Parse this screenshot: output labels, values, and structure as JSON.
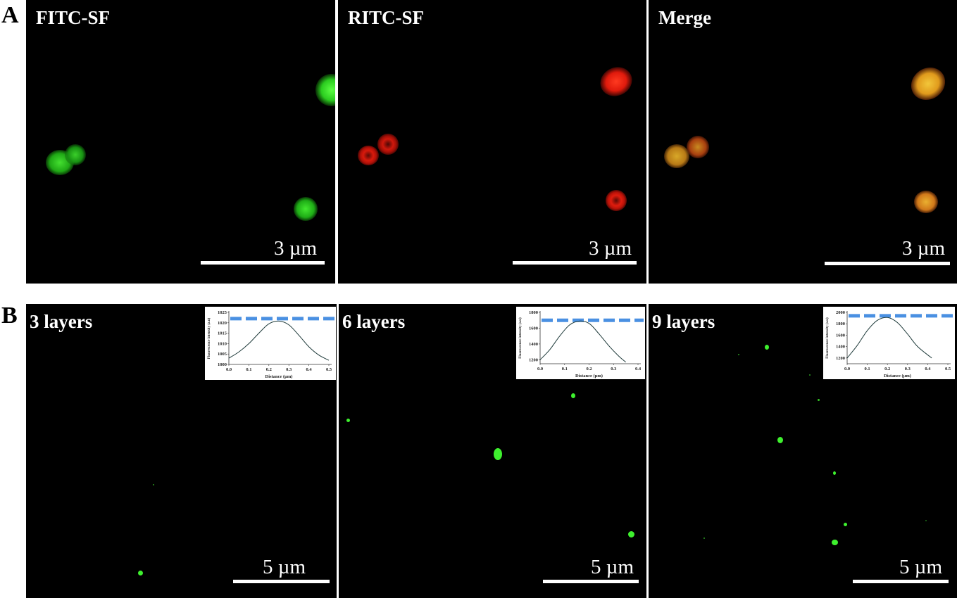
{
  "row_a": {
    "label": "A",
    "panels": [
      {
        "title": "FITC-SF",
        "scale": "3 µm"
      },
      {
        "title": "RITC-SF",
        "scale": "3 µm"
      },
      {
        "title": "Merge",
        "scale": "3 µm"
      }
    ]
  },
  "row_b": {
    "label": "B",
    "panels": [
      {
        "title": "3 layers",
        "scale": "5 µm"
      },
      {
        "title": "6 layers",
        "scale": "5 µm"
      },
      {
        "title": "9 layers",
        "scale": "5 µm"
      }
    ]
  },
  "colors": {
    "fitc_green": "#39e52c",
    "ritc_red": "#ff2a1a",
    "merge_yellow": "#e8b020",
    "dash_blue": "#4a90e2"
  },
  "chart_data": [
    {
      "type": "line",
      "xlabel": "Distance (µm)",
      "ylabel": "Fluorescence intensity (a.u)",
      "xticks": [
        "0.0",
        "0.1",
        "0.2",
        "0.3",
        "0.4",
        "0.5"
      ],
      "yticks": [
        "1000",
        "1005",
        "1010",
        "1015",
        "1020",
        "1025"
      ],
      "xlim": [
        0,
        0.5
      ],
      "ylim": [
        1000,
        1025
      ],
      "dashed_level": 1022,
      "x": [
        0.0,
        0.05,
        0.1,
        0.15,
        0.2,
        0.25,
        0.3,
        0.35,
        0.4,
        0.45,
        0.5
      ],
      "y": [
        1003,
        1006,
        1010,
        1015,
        1019.5,
        1020.8,
        1019,
        1014,
        1008.5,
        1004.5,
        1002
      ]
    },
    {
      "type": "line",
      "xlabel": "Distance (µm)",
      "ylabel": "Fluorescence intensity (a.u)",
      "xticks": [
        "0.0",
        "0.1",
        "0.2",
        "0.3",
        "0.4"
      ],
      "yticks": [
        "1200",
        "1400",
        "1600",
        "1800"
      ],
      "xlim": [
        0,
        0.4
      ],
      "ylim": [
        1150,
        1800
      ],
      "dashed_level": 1700,
      "x": [
        0.0,
        0.04,
        0.08,
        0.12,
        0.16,
        0.2,
        0.24,
        0.28,
        0.32,
        0.35
      ],
      "y": [
        1200,
        1330,
        1500,
        1640,
        1690,
        1660,
        1530,
        1380,
        1250,
        1170
      ]
    },
    {
      "type": "line",
      "xlabel": "Distance (µm)",
      "ylabel": "Fluorescence intensity (a.u)",
      "xticks": [
        "0.0",
        "0.1",
        "0.2",
        "0.3",
        "0.4",
        "0.5"
      ],
      "yticks": [
        "1200",
        "1400",
        "1600",
        "1800",
        "2000"
      ],
      "xlim": [
        0,
        0.5
      ],
      "ylim": [
        1100,
        2000
      ],
      "dashed_level": 1940,
      "x": [
        0.0,
        0.05,
        0.1,
        0.15,
        0.2,
        0.25,
        0.3,
        0.35,
        0.42
      ],
      "y": [
        1200,
        1420,
        1680,
        1860,
        1910,
        1820,
        1620,
        1400,
        1200
      ]
    }
  ]
}
